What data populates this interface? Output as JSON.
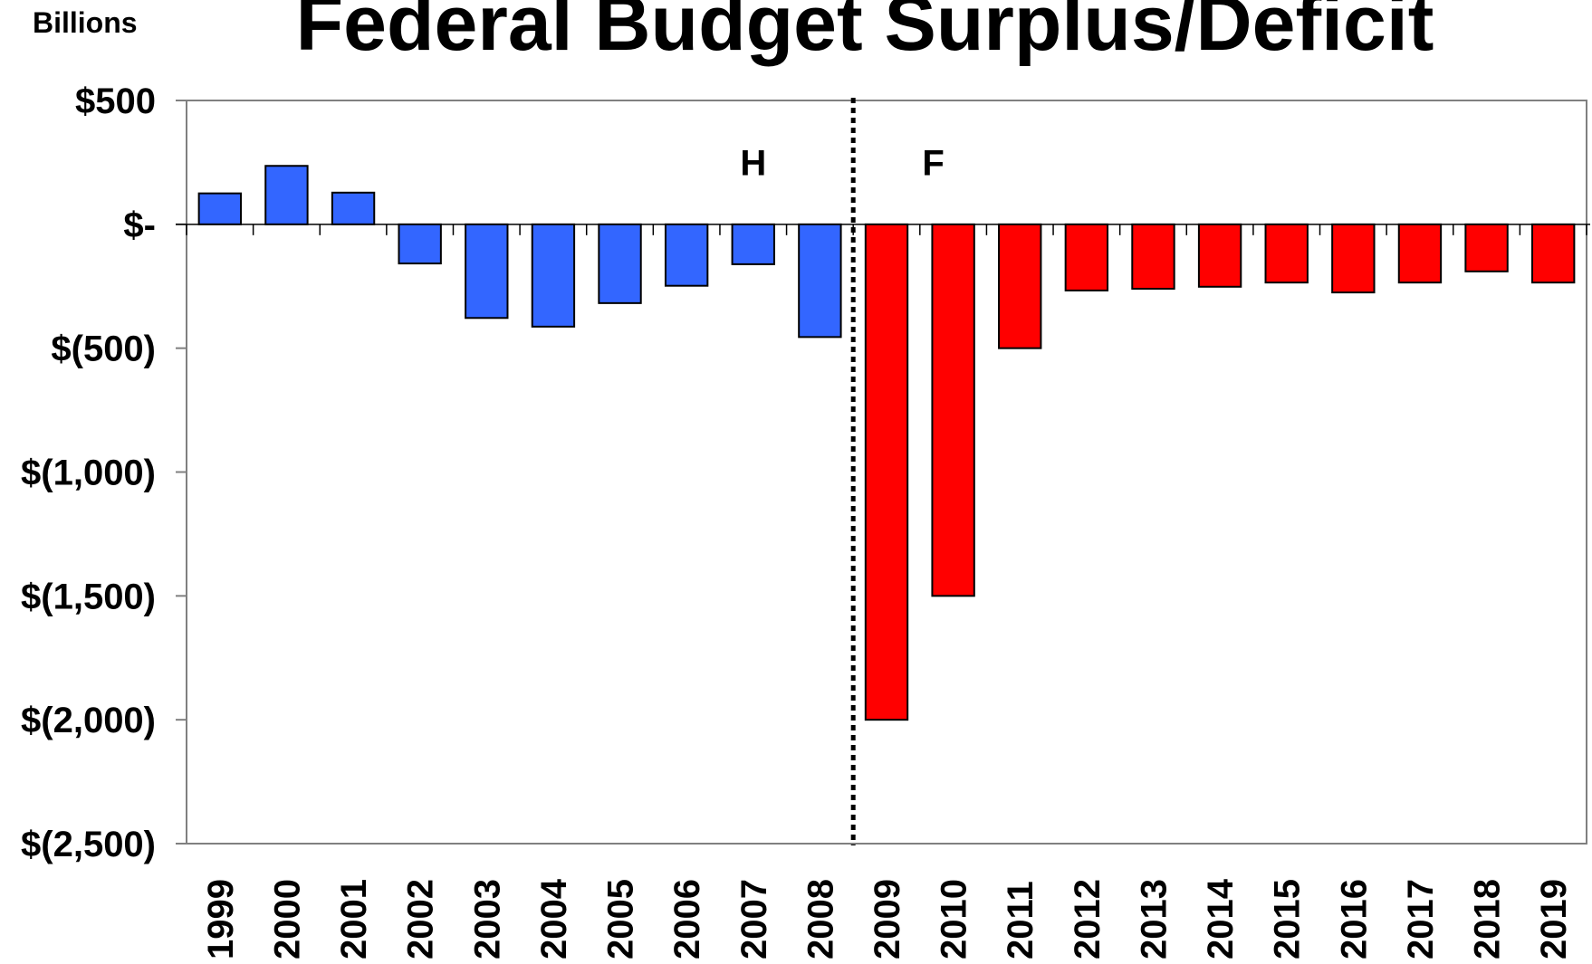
{
  "chart_data": {
    "type": "bar",
    "title": "Federal Budget Surplus/Deficit",
    "units_label": "Billions",
    "categories": [
      "1999",
      "2000",
      "2001",
      "2002",
      "2003",
      "2004",
      "2005",
      "2006",
      "2007",
      "2008",
      "2009",
      "2010",
      "2011",
      "2012",
      "2013",
      "2014",
      "2015",
      "2016",
      "2017",
      "2018",
      "2019"
    ],
    "values": [
      125,
      236,
      128,
      -158,
      -378,
      -413,
      -318,
      -248,
      -161,
      -455,
      -2000,
      -1500,
      -500,
      -267,
      -260,
      -252,
      -235,
      -275,
      -235,
      -190,
      -235
    ],
    "ylim": [
      -2500,
      500
    ],
    "yticks": [
      500,
      0,
      -500,
      -1000,
      -1500,
      -2000,
      -2500
    ],
    "ytick_labels": [
      "$500",
      "$-",
      "$(500)",
      "$(1,000)",
      "$(1,500)",
      "$(2,000)",
      "$(2,500)"
    ],
    "grid": false,
    "colors": {
      "historical": "#3366ff",
      "forecast": "#ff0000",
      "bar_outline": "#000000",
      "axis": "#808080"
    },
    "divider_between": [
      "2008",
      "2009"
    ],
    "annotations": [
      {
        "text": "H",
        "category": "2007",
        "y": 250
      },
      {
        "text": "F",
        "category": "2009.7",
        "y": 250
      }
    ],
    "forecast_start_index": 10
  }
}
